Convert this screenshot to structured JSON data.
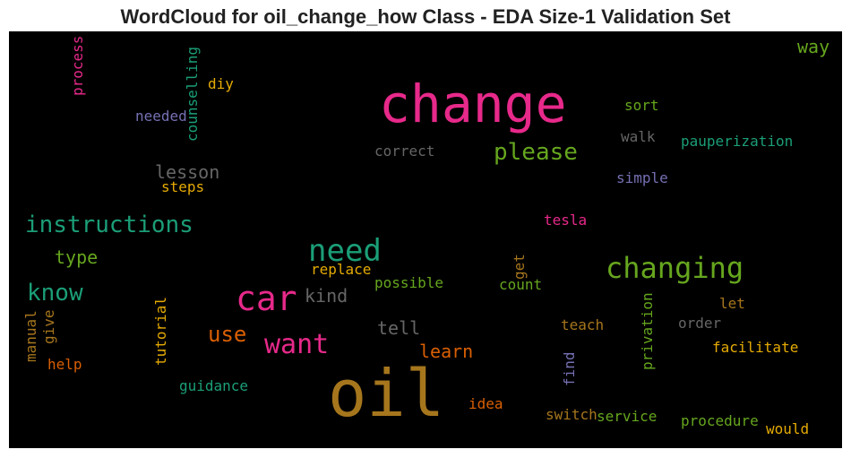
{
  "title": "WordCloud for oil_change_how Class - EDA Size-1 Validation Set",
  "chart_data": {
    "type": "wordcloud",
    "background": "#000000",
    "words": [
      {
        "text": "change",
        "color": "#e7298a"
      },
      {
        "text": "oil",
        "color": "#a6761d"
      },
      {
        "text": "car",
        "color": "#e7298a"
      },
      {
        "text": "changing",
        "color": "#66a61e"
      },
      {
        "text": "need",
        "color": "#1b9e77"
      },
      {
        "text": "want",
        "color": "#e7298a"
      },
      {
        "text": "instructions",
        "color": "#1b9e77"
      },
      {
        "text": "know",
        "color": "#1b9e77"
      },
      {
        "text": "please",
        "color": "#66a61e"
      },
      {
        "text": "use",
        "color": "#d95f02"
      },
      {
        "text": "lesson",
        "color": "#666666"
      },
      {
        "text": "tell",
        "color": "#666666"
      },
      {
        "text": "kind",
        "color": "#666666"
      },
      {
        "text": "learn",
        "color": "#d95f02"
      },
      {
        "text": "type",
        "color": "#66a61e"
      },
      {
        "text": "way",
        "color": "#66a61e"
      },
      {
        "text": "correct",
        "color": "#666666"
      },
      {
        "text": "pauperization",
        "color": "#1b9e77"
      },
      {
        "text": "sort",
        "color": "#66a61e"
      },
      {
        "text": "walk",
        "color": "#666666"
      },
      {
        "text": "simple",
        "color": "#7570b3"
      },
      {
        "text": "diy",
        "color": "#e6ab02"
      },
      {
        "text": "needed",
        "color": "#7570b3"
      },
      {
        "text": "steps",
        "color": "#e6ab02"
      },
      {
        "text": "tesla",
        "color": "#e7298a"
      },
      {
        "text": "replace",
        "color": "#e6ab02"
      },
      {
        "text": "possible",
        "color": "#66a61e"
      },
      {
        "text": "count",
        "color": "#66a61e"
      },
      {
        "text": "teach",
        "color": "#a6761d"
      },
      {
        "text": "order",
        "color": "#666666"
      },
      {
        "text": "let",
        "color": "#a6761d"
      },
      {
        "text": "facilitate",
        "color": "#e6ab02"
      },
      {
        "text": "help",
        "color": "#d95f02"
      },
      {
        "text": "guidance",
        "color": "#1b9e77"
      },
      {
        "text": "idea",
        "color": "#d95f02"
      },
      {
        "text": "switch",
        "color": "#a6761d"
      },
      {
        "text": "service",
        "color": "#66a61e"
      },
      {
        "text": "procedure",
        "color": "#66a61e"
      },
      {
        "text": "would",
        "color": "#e6ab02"
      },
      {
        "text": "process",
        "color": "#e7298a"
      },
      {
        "text": "counselling",
        "color": "#1b9e77"
      },
      {
        "text": "manual",
        "color": "#a6761d"
      },
      {
        "text": "give",
        "color": "#a6761d"
      },
      {
        "text": "tutorial",
        "color": "#e6ab02"
      },
      {
        "text": "get",
        "color": "#a6761d"
      },
      {
        "text": "find",
        "color": "#7570b3"
      },
      {
        "text": "privation",
        "color": "#66a61e"
      }
    ]
  }
}
